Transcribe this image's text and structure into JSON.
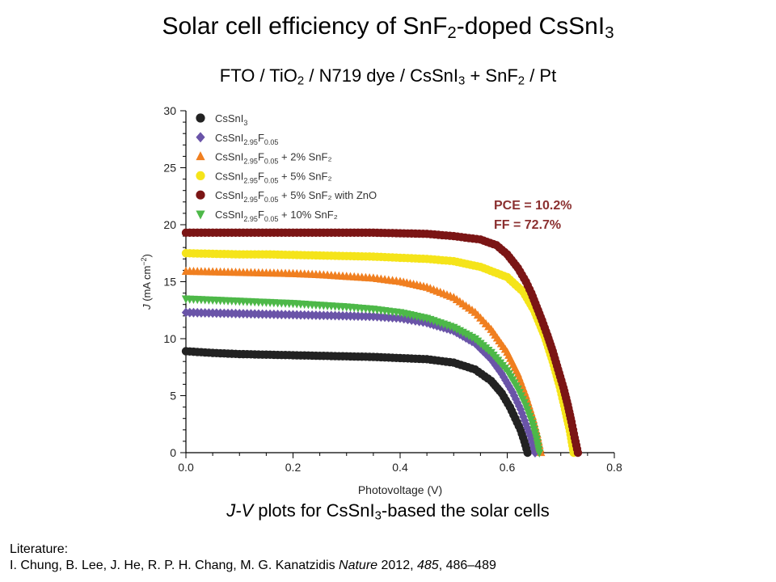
{
  "slide": {
    "title_parts": [
      "Solar cell efficiency of SnF",
      "2",
      "-doped CsSnI",
      "3"
    ],
    "subtitle_parts": [
      "FTO / TiO",
      "2",
      " / N719 dye / CsSnI",
      "3",
      " + SnF",
      "2",
      " / Pt"
    ],
    "caption_parts": [
      "J-V",
      " plots for CsSnI",
      "3",
      "-based the solar cells"
    ],
    "literature_label": "Literature:",
    "citation_authors": "I. Chung, B. Lee, J. He, R. P. H. Chang, M. G. Kanatzidis ",
    "citation_journal": "Nature",
    "citation_year": " 2012, ",
    "citation_volume": "485",
    "citation_pages": ", 486–489"
  },
  "chart_data": {
    "type": "scatter",
    "xlabel": "Photovoltage (V)",
    "ylabel_parts": [
      "J",
      " (mA cm",
      "−2",
      ")"
    ],
    "xlim": [
      0,
      0.8
    ],
    "ylim": [
      0,
      30
    ],
    "xticks": [
      "0.0",
      "0.2",
      "0.4",
      "0.6",
      "0.8"
    ],
    "yticks": [
      "0",
      "5",
      "10",
      "15",
      "20",
      "25",
      "30"
    ],
    "grid": false,
    "legend_position": "top-left",
    "annotations": [
      {
        "text": "PCE = 10.2%",
        "color": "#8b3030"
      },
      {
        "text": "FF = 72.7%",
        "color": "#8b3030"
      }
    ],
    "series": [
      {
        "name_parts": [
          "CsSnI",
          "3",
          "",
          "",
          ""
        ],
        "marker": "circle",
        "color": "#222222",
        "points": [
          [
            0.0,
            8.9
          ],
          [
            0.05,
            8.75
          ],
          [
            0.1,
            8.65
          ],
          [
            0.15,
            8.6
          ],
          [
            0.2,
            8.55
          ],
          [
            0.25,
            8.5
          ],
          [
            0.3,
            8.45
          ],
          [
            0.35,
            8.4
          ],
          [
            0.4,
            8.3
          ],
          [
            0.45,
            8.2
          ],
          [
            0.5,
            7.9
          ],
          [
            0.54,
            7.3
          ],
          [
            0.57,
            6.3
          ],
          [
            0.59,
            5.2
          ],
          [
            0.605,
            4.0
          ],
          [
            0.615,
            3.0
          ],
          [
            0.625,
            2.0
          ],
          [
            0.632,
            1.0
          ],
          [
            0.638,
            0.0
          ]
        ]
      },
      {
        "name_parts": [
          "CsSnI",
          "2.95",
          "F",
          "0.05",
          ""
        ],
        "marker": "diamond",
        "color": "#6a54a8",
        "points": [
          [
            0.0,
            12.3
          ],
          [
            0.05,
            12.25
          ],
          [
            0.1,
            12.2
          ],
          [
            0.15,
            12.15
          ],
          [
            0.2,
            12.1
          ],
          [
            0.25,
            12.05
          ],
          [
            0.3,
            12.0
          ],
          [
            0.35,
            11.95
          ],
          [
            0.4,
            11.8
          ],
          [
            0.45,
            11.4
          ],
          [
            0.5,
            10.7
          ],
          [
            0.54,
            9.6
          ],
          [
            0.57,
            8.2
          ],
          [
            0.59,
            6.9
          ],
          [
            0.61,
            5.3
          ],
          [
            0.625,
            3.8
          ],
          [
            0.635,
            2.5
          ],
          [
            0.645,
            1.2
          ],
          [
            0.652,
            0.0
          ]
        ]
      },
      {
        "name_parts": [
          "CsSnI",
          "2.95",
          "F",
          "0.05",
          " + 2% SnF₂"
        ],
        "marker": "triangle",
        "color": "#f07f20",
        "points": [
          [
            0.0,
            15.9
          ],
          [
            0.05,
            15.85
          ],
          [
            0.1,
            15.8
          ],
          [
            0.15,
            15.75
          ],
          [
            0.2,
            15.7
          ],
          [
            0.25,
            15.6
          ],
          [
            0.3,
            15.45
          ],
          [
            0.35,
            15.3
          ],
          [
            0.4,
            15.0
          ],
          [
            0.45,
            14.5
          ],
          [
            0.5,
            13.6
          ],
          [
            0.54,
            12.3
          ],
          [
            0.57,
            10.8
          ],
          [
            0.6,
            8.8
          ],
          [
            0.62,
            6.9
          ],
          [
            0.635,
            5.0
          ],
          [
            0.647,
            3.2
          ],
          [
            0.656,
            1.6
          ],
          [
            0.663,
            0.0
          ]
        ]
      },
      {
        "name_parts": [
          "CsSnI",
          "2.95",
          "F",
          "0.05",
          " + 5% SnF₂"
        ],
        "marker": "circle",
        "color": "#f5e41a",
        "points": [
          [
            0.0,
            17.5
          ],
          [
            0.05,
            17.45
          ],
          [
            0.1,
            17.4
          ],
          [
            0.15,
            17.4
          ],
          [
            0.2,
            17.35
          ],
          [
            0.25,
            17.3
          ],
          [
            0.3,
            17.25
          ],
          [
            0.35,
            17.2
          ],
          [
            0.4,
            17.1
          ],
          [
            0.45,
            17.0
          ],
          [
            0.5,
            16.8
          ],
          [
            0.55,
            16.3
          ],
          [
            0.6,
            15.4
          ],
          [
            0.63,
            14.1
          ],
          [
            0.65,
            12.5
          ],
          [
            0.67,
            10.2
          ],
          [
            0.685,
            8.0
          ],
          [
            0.698,
            5.8
          ],
          [
            0.708,
            3.8
          ],
          [
            0.717,
            1.9
          ],
          [
            0.724,
            0.0
          ]
        ]
      },
      {
        "name_parts": [
          "CsSnI",
          "2.95",
          "F",
          "0.05",
          " + 5% SnF₂ with ZnO"
        ],
        "marker": "circle",
        "color": "#7b1515",
        "points": [
          [
            0.0,
            19.3
          ],
          [
            0.05,
            19.3
          ],
          [
            0.1,
            19.3
          ],
          [
            0.15,
            19.3
          ],
          [
            0.2,
            19.3
          ],
          [
            0.25,
            19.3
          ],
          [
            0.3,
            19.3
          ],
          [
            0.35,
            19.3
          ],
          [
            0.4,
            19.25
          ],
          [
            0.45,
            19.2
          ],
          [
            0.5,
            19.0
          ],
          [
            0.55,
            18.7
          ],
          [
            0.58,
            18.2
          ],
          [
            0.6,
            17.4
          ],
          [
            0.62,
            16.2
          ],
          [
            0.635,
            15.0
          ],
          [
            0.645,
            14.0
          ],
          [
            0.655,
            12.8
          ],
          [
            0.665,
            11.6
          ],
          [
            0.675,
            10.3
          ],
          [
            0.685,
            8.9
          ],
          [
            0.695,
            7.3
          ],
          [
            0.705,
            5.7
          ],
          [
            0.713,
            4.2
          ],
          [
            0.72,
            2.7
          ],
          [
            0.726,
            1.3
          ],
          [
            0.732,
            0.0
          ]
        ]
      },
      {
        "name_parts": [
          "CsSnI",
          "2.95",
          "F",
          "0.05",
          " + 10% SnF₂"
        ],
        "marker": "triangle-down",
        "color": "#4db848",
        "points": [
          [
            0.0,
            13.5
          ],
          [
            0.05,
            13.4
          ],
          [
            0.1,
            13.3
          ],
          [
            0.15,
            13.2
          ],
          [
            0.2,
            13.1
          ],
          [
            0.25,
            12.95
          ],
          [
            0.3,
            12.8
          ],
          [
            0.35,
            12.6
          ],
          [
            0.4,
            12.3
          ],
          [
            0.45,
            11.8
          ],
          [
            0.5,
            11.0
          ],
          [
            0.54,
            10.0
          ],
          [
            0.57,
            8.8
          ],
          [
            0.6,
            7.2
          ],
          [
            0.62,
            5.6
          ],
          [
            0.635,
            4.1
          ],
          [
            0.647,
            2.6
          ],
          [
            0.655,
            1.2
          ],
          [
            0.66,
            0.0
          ]
        ]
      }
    ]
  }
}
